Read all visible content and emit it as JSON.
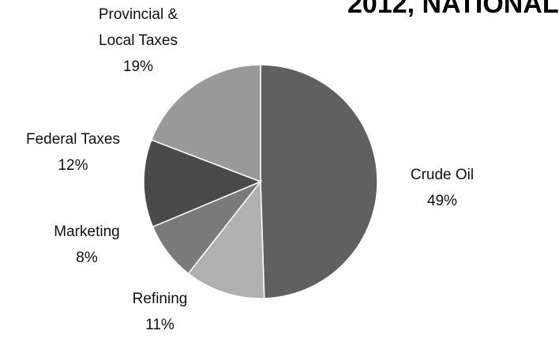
{
  "chart_data": {
    "type": "pie",
    "title": "2012, NATIONAL",
    "categories": [
      "Crude Oil",
      "Refining",
      "Marketing",
      "Federal Taxes",
      "Provincial & Local Taxes"
    ],
    "values": [
      49,
      11,
      8,
      12,
      19
    ],
    "value_labels": [
      "49%",
      "11%",
      "8%",
      "12%",
      "19%"
    ],
    "colors": [
      "#606060",
      "#b0b0b0",
      "#7a7a7a",
      "#4a4a4a",
      "#999999"
    ]
  }
}
